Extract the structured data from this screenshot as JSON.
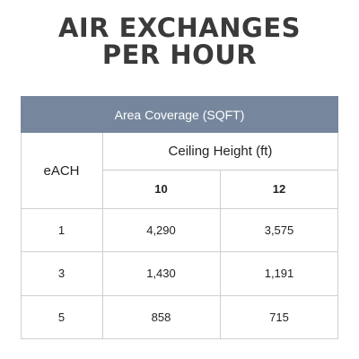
{
  "title_line1": "AIR EXCHANGES",
  "title_line2": "PER HOUR",
  "table": {
    "band_label": "Area Coverage (SQFT)",
    "row_header": "eACH",
    "group_header": "Ceiling Height (ft)",
    "columns": [
      "10",
      "12"
    ],
    "rows": [
      {
        "each": "1",
        "values": [
          "4,290",
          "3,575"
        ]
      },
      {
        "each": "3",
        "values": [
          "1,430",
          "1,191"
        ]
      },
      {
        "each": "5",
        "values": [
          "858",
          "715"
        ]
      }
    ]
  },
  "colors": {
    "band": "#76879d",
    "title": "#3a3a3a",
    "grid": "#cfcfcf"
  }
}
